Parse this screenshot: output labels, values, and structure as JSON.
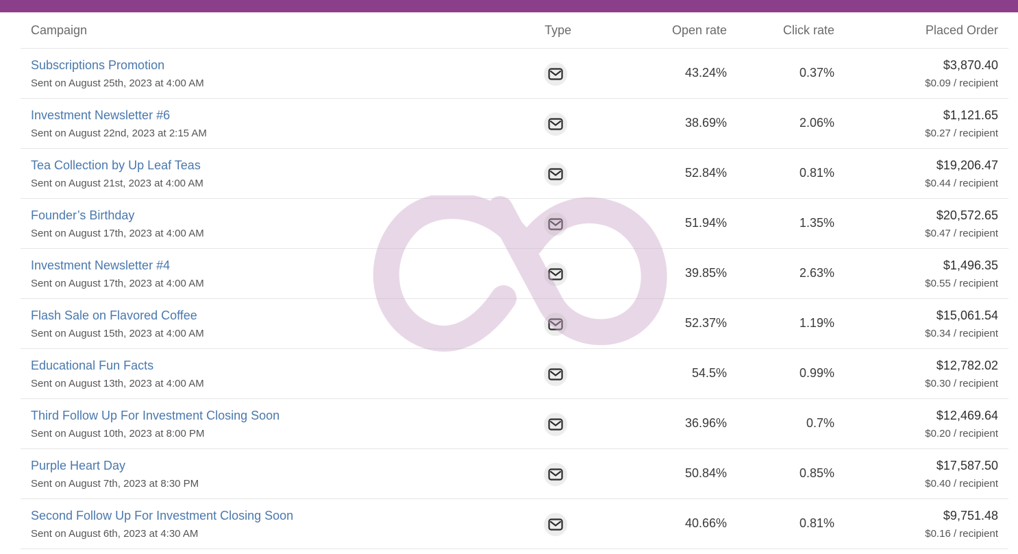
{
  "colors": {
    "topbar": "#8b3f8a",
    "link": "#4a78ad",
    "watermark": "#c9a4c7",
    "divider": "#e6e6e6"
  },
  "table": {
    "headers": {
      "campaign": "Campaign",
      "type": "Type",
      "open_rate": "Open rate",
      "click_rate": "Click rate",
      "placed_order": "Placed Order"
    },
    "rows": [
      {
        "name": "Subscriptions Promotion",
        "sent": "Sent on August 25th, 2023 at 4:00 AM",
        "type_icon": "email-icon",
        "open_rate": "43.24%",
        "click_rate": "0.37%",
        "placed_order": "$3,870.40",
        "per_recipient": "$0.09 / recipient"
      },
      {
        "name": "Investment Newsletter #6",
        "sent": "Sent on August 22nd, 2023 at 2:15 AM",
        "type_icon": "email-icon",
        "open_rate": "38.69%",
        "click_rate": "2.06%",
        "placed_order": "$1,121.65",
        "per_recipient": "$0.27 / recipient"
      },
      {
        "name": "Tea Collection by Up Leaf Teas",
        "sent": "Sent on August 21st, 2023 at 4:00 AM",
        "type_icon": "email-icon",
        "open_rate": "52.84%",
        "click_rate": "0.81%",
        "placed_order": "$19,206.47",
        "per_recipient": "$0.44 / recipient"
      },
      {
        "name": "Founder’s Birthday",
        "sent": "Sent on August 17th, 2023 at 4:00 AM",
        "type_icon": "email-icon",
        "open_rate": "51.94%",
        "click_rate": "1.35%",
        "placed_order": "$20,572.65",
        "per_recipient": "$0.47 / recipient"
      },
      {
        "name": "Investment Newsletter #4",
        "sent": "Sent on August 17th, 2023 at 4:00 AM",
        "type_icon": "email-icon",
        "open_rate": "39.85%",
        "click_rate": "2.63%",
        "placed_order": "$1,496.35",
        "per_recipient": "$0.55 / recipient"
      },
      {
        "name": "Flash Sale on Flavored Coffee",
        "sent": "Sent on August 15th, 2023 at 4:00 AM",
        "type_icon": "email-icon",
        "open_rate": "52.37%",
        "click_rate": "1.19%",
        "placed_order": "$15,061.54",
        "per_recipient": "$0.34 / recipient"
      },
      {
        "name": "Educational Fun Facts",
        "sent": "Sent on August 13th, 2023 at 4:00 AM",
        "type_icon": "email-icon",
        "open_rate": "54.5%",
        "click_rate": "0.99%",
        "placed_order": "$12,782.02",
        "per_recipient": "$0.30 / recipient"
      },
      {
        "name": "Third Follow Up For Investment Closing Soon",
        "sent": "Sent on August 10th, 2023 at 8:00 PM",
        "type_icon": "email-icon",
        "open_rate": "36.96%",
        "click_rate": "0.7%",
        "placed_order": "$12,469.64",
        "per_recipient": "$0.20 / recipient"
      },
      {
        "name": "Purple Heart Day",
        "sent": "Sent on August 7th, 2023 at 8:30 PM",
        "type_icon": "email-icon",
        "open_rate": "50.84%",
        "click_rate": "0.85%",
        "placed_order": "$17,587.50",
        "per_recipient": "$0.40 / recipient"
      },
      {
        "name": "Second Follow Up For Investment Closing Soon",
        "sent": "Sent on August 6th, 2023 at 4:30 AM",
        "type_icon": "email-icon",
        "open_rate": "40.66%",
        "click_rate": "0.81%",
        "placed_order": "$9,751.48",
        "per_recipient": "$0.16 / recipient"
      }
    ]
  }
}
